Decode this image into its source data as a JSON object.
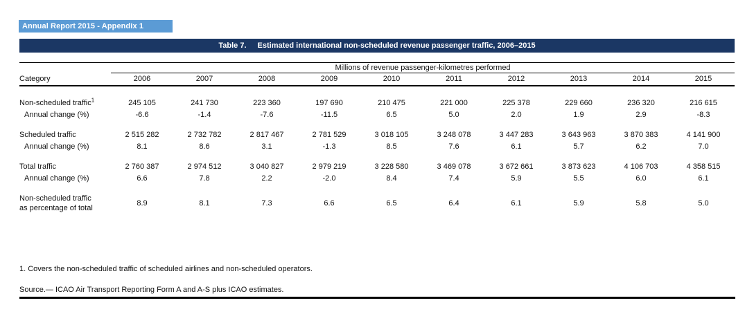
{
  "banner": {
    "text": "Annual Report 2015 - Appendix 1"
  },
  "title": {
    "label": "Table 7.",
    "text": "Estimated international non-scheduled revenue passenger traffic, 2006–2015"
  },
  "colors": {
    "banner_bg": "#5B9BD5",
    "title_bg": "#1B3764",
    "rule": "#000000"
  },
  "table": {
    "span_header": "Millions of revenue passenger-kilometres performed",
    "category_header": "Category",
    "years": [
      "2006",
      "2007",
      "2008",
      "2009",
      "2010",
      "2011",
      "2012",
      "2013",
      "2014",
      "2015"
    ],
    "rows": [
      {
        "label": "Non-scheduled traffic",
        "sup": "1",
        "indent": false,
        "gap_before": false,
        "values": [
          "245 105",
          "241 730",
          "223 360",
          "197 690",
          "210 475",
          "221 000",
          "225 378",
          "229 660",
          "236 320",
          "216 615"
        ]
      },
      {
        "label": "Annual change (%)",
        "indent": true,
        "gap_before": false,
        "values": [
          "-6.6",
          "-1.4",
          "-7.6",
          "-11.5",
          "6.5",
          "5.0",
          "2.0",
          "1.9",
          "2.9",
          "-8.3"
        ]
      },
      {
        "label": "Scheduled traffic",
        "indent": false,
        "gap_before": true,
        "values": [
          "2 515 282",
          "2 732 782",
          "2 817 467",
          "2 781 529",
          "3 018 105",
          "3 248 078",
          "3 447 283",
          "3 643 963",
          "3 870 383",
          "4 141 900"
        ]
      },
      {
        "label": "Annual change (%)",
        "indent": true,
        "gap_before": false,
        "values": [
          "8.1",
          "8.6",
          "3.1",
          "-1.3",
          "8.5",
          "7.6",
          "6.1",
          "5.7",
          "6.2",
          "7.0"
        ]
      },
      {
        "label": "Total traffic",
        "indent": false,
        "gap_before": true,
        "values": [
          "2 760 387",
          "2 974 512",
          "3 040 827",
          "2 979 219",
          "3 228 580",
          "3 469 078",
          "3 672 661",
          "3 873 623",
          "4 106 703",
          "4 358 515"
        ]
      },
      {
        "label": "Annual change (%)",
        "indent": true,
        "gap_before": false,
        "values": [
          "6.6",
          "7.8",
          "2.2",
          "-2.0",
          "8.4",
          "7.4",
          "5.9",
          "5.5",
          "6.0",
          "6.1"
        ]
      },
      {
        "label_lines": [
          "Non-scheduled traffic",
          "as percentage of total"
        ],
        "indent": false,
        "gap_before": true,
        "values": [
          "8.9",
          "8.1",
          "7.3",
          "6.6",
          "6.5",
          "6.4",
          "6.1",
          "5.9",
          "5.8",
          "5.0"
        ]
      }
    ]
  },
  "footnote": "1. Covers the non-scheduled traffic of scheduled airlines and non-scheduled operators.",
  "source": "Source.— ICAO Air Transport Reporting Form A and A-S plus ICAO estimates."
}
